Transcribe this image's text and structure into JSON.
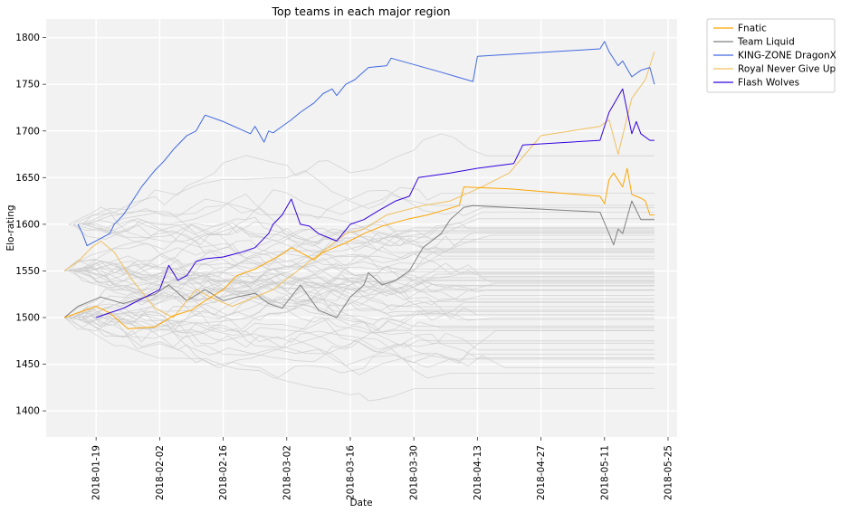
{
  "chart_data": {
    "type": "line",
    "title": "Top teams in each major region",
    "xlabel": "Date",
    "ylabel": "Elo-rating",
    "xlim": [
      "2018-01-08",
      "2018-05-27"
    ],
    "ylim": [
      1372,
      1820
    ],
    "grid": true,
    "legend_position": "outside-top-right",
    "x_ticks": [
      "2018-01-19",
      "2018-02-02",
      "2018-02-16",
      "2018-03-02",
      "2018-03-16",
      "2018-03-30",
      "2018-04-13",
      "2018-04-27",
      "2018-05-11",
      "2018-05-25"
    ],
    "y_ticks": [
      1400,
      1450,
      1500,
      1550,
      1600,
      1650,
      1700,
      1750,
      1800
    ],
    "colors": {
      "plot_bg": "#f2f2f2",
      "grid": "#ffffff",
      "background_teams": "#cccccc",
      "Fnatic": "#ffa500",
      "Team Liquid": "#808080",
      "KING-ZONE DragonX": "#4169e1",
      "Royal Never Give Up": "#f0c060",
      "Flash Wolves": "#3300dd"
    },
    "series": [
      {
        "name": "Fnatic",
        "x": [
          "2018-01-12",
          "2018-01-19",
          "2018-01-22",
          "2018-01-26",
          "2018-02-01",
          "2018-02-05",
          "2018-02-09",
          "2018-02-12",
          "2018-02-16",
          "2018-02-19",
          "2018-02-23",
          "2018-02-26",
          "2018-03-01",
          "2018-03-03",
          "2018-03-08",
          "2018-03-10",
          "2018-03-15",
          "2018-03-19",
          "2018-03-23",
          "2018-03-26",
          "2018-03-29",
          "2018-04-02",
          "2018-04-09",
          "2018-04-10",
          "2018-04-20",
          "2018-05-10",
          "2018-05-11",
          "2018-05-12",
          "2018-05-13",
          "2018-05-15",
          "2018-05-16",
          "2018-05-17",
          "2018-05-19",
          "2018-05-20",
          "2018-05-21",
          "2018-05-22"
        ],
        "y": [
          1500,
          1512,
          1505,
          1488,
          1490,
          1502,
          1508,
          1518,
          1530,
          1545,
          1552,
          1560,
          1568,
          1575,
          1562,
          1570,
          1580,
          1590,
          1598,
          1602,
          1606,
          1610,
          1620,
          1640,
          1638,
          1630,
          1622,
          1648,
          1655,
          1640,
          1660,
          1632,
          1628,
          1625,
          1610,
          1610
        ]
      },
      {
        "name": "Team Liquid",
        "x": [
          "2018-01-12",
          "2018-01-15",
          "2018-01-20",
          "2018-01-25",
          "2018-02-01",
          "2018-02-04",
          "2018-02-08",
          "2018-02-12",
          "2018-02-16",
          "2018-02-19",
          "2018-02-23",
          "2018-02-26",
          "2018-03-01",
          "2018-03-05",
          "2018-03-09",
          "2018-03-13",
          "2018-03-16",
          "2018-03-19",
          "2018-03-20",
          "2018-03-23",
          "2018-03-26",
          "2018-03-29",
          "2018-04-01",
          "2018-04-05",
          "2018-04-07",
          "2018-04-10",
          "2018-04-12",
          "2018-05-10",
          "2018-05-12",
          "2018-05-13",
          "2018-05-14",
          "2018-05-15",
          "2018-05-17",
          "2018-05-18",
          "2018-05-19",
          "2018-05-22"
        ],
        "y": [
          1500,
          1512,
          1522,
          1515,
          1525,
          1535,
          1518,
          1530,
          1518,
          1522,
          1526,
          1515,
          1510,
          1535,
          1508,
          1500,
          1522,
          1535,
          1548,
          1535,
          1540,
          1550,
          1575,
          1590,
          1605,
          1618,
          1620,
          1613,
          1590,
          1578,
          1595,
          1590,
          1625,
          1615,
          1605,
          1605
        ]
      },
      {
        "name": "KING-ZONE DragonX",
        "x": [
          "2018-01-15",
          "2018-01-16",
          "2018-01-17",
          "2018-01-22",
          "2018-01-23",
          "2018-01-25",
          "2018-01-27",
          "2018-01-29",
          "2018-02-01",
          "2018-02-03",
          "2018-02-05",
          "2018-02-08",
          "2018-02-10",
          "2018-02-12",
          "2018-02-16",
          "2018-02-22",
          "2018-02-23",
          "2018-02-25",
          "2018-02-26",
          "2018-02-27",
          "2018-03-01",
          "2018-03-03",
          "2018-03-05",
          "2018-03-08",
          "2018-03-10",
          "2018-03-12",
          "2018-03-13",
          "2018-03-15",
          "2018-03-17",
          "2018-03-20",
          "2018-03-24",
          "2018-03-25",
          "2018-04-05",
          "2018-04-12",
          "2018-04-13",
          "2018-05-10",
          "2018-05-11",
          "2018-05-12",
          "2018-05-14",
          "2018-05-15",
          "2018-05-17",
          "2018-05-19",
          "2018-05-21",
          "2018-05-22"
        ],
        "y": [
          1600,
          1590,
          1577,
          1590,
          1600,
          1610,
          1625,
          1640,
          1658,
          1668,
          1680,
          1695,
          1700,
          1717,
          1710,
          1697,
          1705,
          1688,
          1700,
          1698,
          1705,
          1712,
          1720,
          1730,
          1740,
          1745,
          1738,
          1750,
          1755,
          1768,
          1770,
          1778,
          1763,
          1753,
          1780,
          1788,
          1796,
          1785,
          1770,
          1775,
          1758,
          1765,
          1768,
          1750
        ]
      },
      {
        "name": "Royal Never Give Up",
        "x": [
          "2018-01-12",
          "2018-01-15",
          "2018-01-18",
          "2018-01-20",
          "2018-01-23",
          "2018-01-27",
          "2018-02-01",
          "2018-02-05",
          "2018-02-10",
          "2018-02-14",
          "2018-02-18",
          "2018-02-22",
          "2018-02-27",
          "2018-03-03",
          "2018-03-07",
          "2018-03-11",
          "2018-03-15",
          "2018-03-19",
          "2018-03-24",
          "2018-03-28",
          "2018-04-01",
          "2018-04-07",
          "2018-04-14",
          "2018-04-20",
          "2018-04-27",
          "2018-05-10",
          "2018-05-12",
          "2018-05-14",
          "2018-05-17",
          "2018-05-20",
          "2018-05-22"
        ],
        "y": [
          1550,
          1560,
          1575,
          1582,
          1570,
          1540,
          1510,
          1500,
          1530,
          1520,
          1512,
          1520,
          1530,
          1545,
          1560,
          1575,
          1590,
          1595,
          1610,
          1615,
          1620,
          1625,
          1640,
          1655,
          1695,
          1705,
          1712,
          1675,
          1735,
          1755,
          1785
        ]
      },
      {
        "name": "Flash Wolves",
        "x": [
          "2018-01-19",
          "2018-01-22",
          "2018-01-25",
          "2018-01-27",
          "2018-01-29",
          "2018-02-02",
          "2018-02-04",
          "2018-02-06",
          "2018-02-08",
          "2018-02-10",
          "2018-02-12",
          "2018-02-16",
          "2018-02-20",
          "2018-02-23",
          "2018-02-26",
          "2018-02-27",
          "2018-03-01",
          "2018-03-03",
          "2018-03-05",
          "2018-03-07",
          "2018-03-09",
          "2018-03-13",
          "2018-03-16",
          "2018-03-19",
          "2018-03-22",
          "2018-03-26",
          "2018-03-29",
          "2018-03-31",
          "2018-04-07",
          "2018-04-13",
          "2018-04-21",
          "2018-04-23",
          "2018-05-10",
          "2018-05-12",
          "2018-05-15",
          "2018-05-17",
          "2018-05-18",
          "2018-05-19",
          "2018-05-21",
          "2018-05-22"
        ],
        "y": [
          1500,
          1505,
          1510,
          1515,
          1520,
          1530,
          1556,
          1540,
          1545,
          1560,
          1563,
          1565,
          1570,
          1575,
          1590,
          1600,
          1610,
          1627,
          1600,
          1598,
          1590,
          1582,
          1600,
          1605,
          1614,
          1625,
          1630,
          1650,
          1655,
          1660,
          1665,
          1685,
          1690,
          1720,
          1745,
          1697,
          1710,
          1697,
          1690,
          1690
        ]
      }
    ],
    "background_series_count": 60
  }
}
